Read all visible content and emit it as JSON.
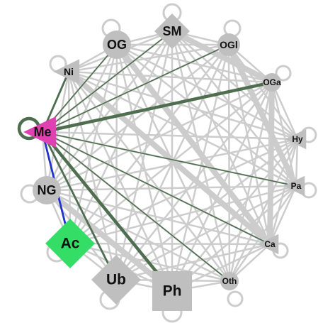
{
  "colors": {
    "edge_background": "#cccccc",
    "node_background": "#bfbfbf",
    "edge_highlight": "#4f6e4f",
    "edge_ac": "#2233cc",
    "node_me": "#e040b0",
    "node_ac": "#33dd66",
    "label": "#111111"
  },
  "nodes": [
    {
      "id": "SM",
      "label": "SM",
      "shape": "diamond",
      "size": "l",
      "highlight": "none"
    },
    {
      "id": "OGl",
      "label": "OGl",
      "shape": "circle",
      "size": "m",
      "highlight": "none"
    },
    {
      "id": "OGa",
      "label": "OGa",
      "shape": "circle",
      "size": "s",
      "highlight": "none"
    },
    {
      "id": "Hy",
      "label": "Hy",
      "shape": "triangle",
      "size": "s",
      "highlight": "none"
    },
    {
      "id": "Pa",
      "label": "Pa",
      "shape": "triangle",
      "size": "s",
      "highlight": "none"
    },
    {
      "id": "Ca",
      "label": "Ca",
      "shape": "triangle",
      "size": "s",
      "highlight": "none"
    },
    {
      "id": "Oth",
      "label": "Oth",
      "shape": "circle",
      "size": "s",
      "highlight": "none"
    },
    {
      "id": "Ph",
      "label": "Ph",
      "shape": "square",
      "size": "xl",
      "highlight": "none"
    },
    {
      "id": "Ub",
      "label": "Ub",
      "shape": "diamond",
      "size": "xl",
      "highlight": "none"
    },
    {
      "id": "Ac",
      "label": "Ac",
      "shape": "diamond",
      "size": "xl",
      "highlight": "ac"
    },
    {
      "id": "NG",
      "label": "NG",
      "shape": "circle",
      "size": "l",
      "highlight": "none"
    },
    {
      "id": "Me",
      "label": "Me",
      "shape": "triangle",
      "size": "l",
      "highlight": "me"
    },
    {
      "id": "Ni",
      "label": "Ni",
      "shape": "triangle",
      "size": "m",
      "highlight": "none"
    },
    {
      "id": "OG",
      "label": "OG",
      "shape": "circle",
      "size": "l",
      "highlight": "none"
    }
  ],
  "highlighted_edges": [
    {
      "from": "Me",
      "to": "OG",
      "weight": 1,
      "kind": "green"
    },
    {
      "from": "Me",
      "to": "SM",
      "weight": 1,
      "kind": "green"
    },
    {
      "from": "Me",
      "to": "OGl",
      "weight": 1,
      "kind": "green"
    },
    {
      "from": "Me",
      "to": "OGa",
      "weight": 3,
      "kind": "green"
    },
    {
      "from": "Me",
      "to": "Ni",
      "weight": 2,
      "kind": "green"
    },
    {
      "from": "Me",
      "to": "Pa",
      "weight": 1,
      "kind": "green"
    },
    {
      "from": "Me",
      "to": "Ca",
      "weight": 1,
      "kind": "green"
    },
    {
      "from": "Me",
      "to": "Oth",
      "weight": 1,
      "kind": "green"
    },
    {
      "from": "Me",
      "to": "Ph",
      "weight": 3,
      "kind": "green"
    },
    {
      "from": "Me",
      "to": "Ub",
      "weight": 2,
      "kind": "green"
    },
    {
      "from": "Me",
      "to": "Ac",
      "weight": 2,
      "kind": "blue"
    },
    {
      "from": "Me",
      "to": "Me",
      "weight": 3,
      "kind": "green"
    }
  ],
  "heavy_background_edges": [
    {
      "from": "SM",
      "to": "OGa"
    },
    {
      "from": "OGa",
      "to": "Ca"
    },
    {
      "from": "OGl",
      "to": "Pa"
    },
    {
      "from": "Ni",
      "to": "Ca"
    },
    {
      "from": "OG",
      "to": "Ca"
    },
    {
      "from": "NG",
      "to": "Ph"
    }
  ]
}
